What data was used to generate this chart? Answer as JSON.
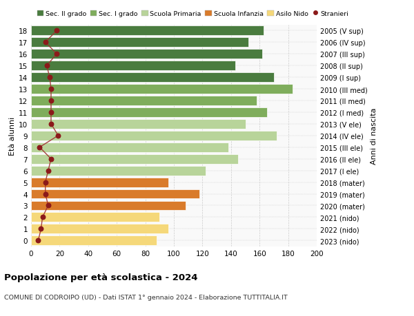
{
  "ages": [
    0,
    1,
    2,
    3,
    4,
    5,
    6,
    7,
    8,
    9,
    10,
    11,
    12,
    13,
    14,
    15,
    16,
    17,
    18
  ],
  "bar_values": [
    88,
    96,
    90,
    108,
    118,
    96,
    122,
    145,
    138,
    172,
    150,
    165,
    158,
    183,
    170,
    143,
    162,
    152,
    163
  ],
  "right_labels": [
    "2023 (nido)",
    "2022 (nido)",
    "2021 (nido)",
    "2020 (mater)",
    "2019 (mater)",
    "2018 (mater)",
    "2017 (I ele)",
    "2016 (II ele)",
    "2015 (III ele)",
    "2014 (IV ele)",
    "2013 (V ele)",
    "2012 (I med)",
    "2011 (II med)",
    "2010 (III med)",
    "2009 (I sup)",
    "2008 (II sup)",
    "2007 (III sup)",
    "2006 (IV sup)",
    "2005 (V sup)"
  ],
  "stranieri_values": [
    5,
    7,
    8,
    12,
    10,
    10,
    12,
    14,
    6,
    19,
    14,
    14,
    14,
    14,
    13,
    11,
    18,
    10,
    18
  ],
  "color_map": [
    "#f5d87a",
    "#f5d87a",
    "#f5d87a",
    "#d97b2b",
    "#d97b2b",
    "#d97b2b",
    "#b8d49a",
    "#b8d49a",
    "#b8d49a",
    "#b8d49a",
    "#b8d49a",
    "#7fad5c",
    "#7fad5c",
    "#7fad5c",
    "#4a7c3f",
    "#4a7c3f",
    "#4a7c3f",
    "#4a7c3f",
    "#4a7c3f"
  ],
  "stranieri_color": "#8b1a1a",
  "stranieri_line_color": "#a03030",
  "title": "Popolazione per età scolastica - 2024",
  "subtitle": "COMUNE DI CODROIPO (UD) - Dati ISTAT 1° gennaio 2024 - Elaborazione TUTTITALIA.IT",
  "ylabel": "Età alunni",
  "ylabel_right": "Anni di nascita",
  "xlim": [
    0,
    200
  ],
  "xticks": [
    0,
    20,
    40,
    60,
    80,
    100,
    120,
    140,
    160,
    180,
    200
  ],
  "legend_items": [
    "Sec. II grado",
    "Sec. I grado",
    "Scuola Primaria",
    "Scuola Infanzia",
    "Asilo Nido",
    "Stranieri"
  ],
  "legend_colors": [
    "#4a7c3f",
    "#7fad5c",
    "#b8d49a",
    "#d97b2b",
    "#f5d87a",
    "#8b1a1a"
  ],
  "bg_color": "#f9f9f9"
}
